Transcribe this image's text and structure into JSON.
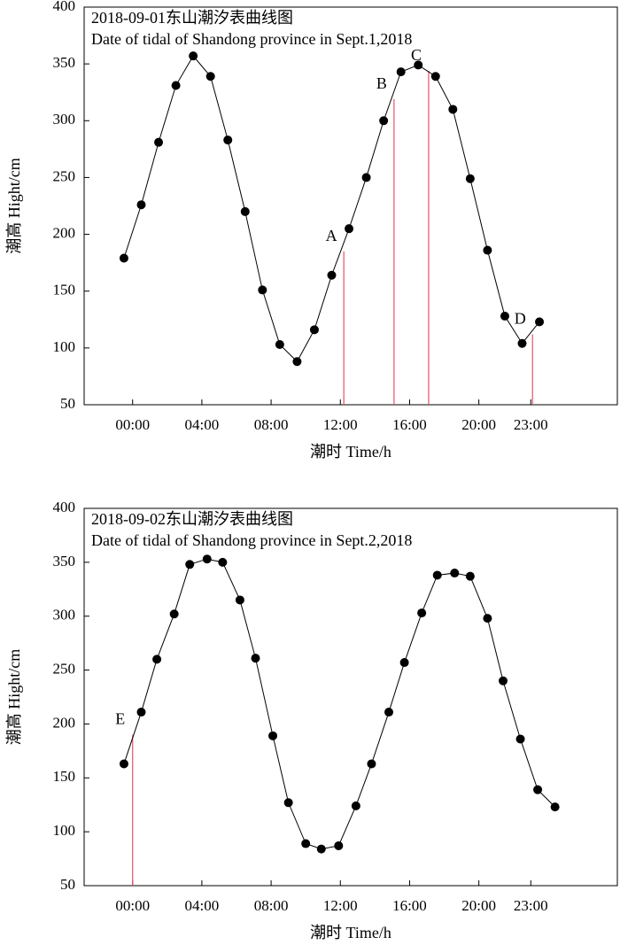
{
  "chart_data": [
    {
      "type": "line",
      "title": "2018-09-01东山潮汐表曲线图",
      "subtitle": "Date of tidal of Shandong province in Sept.1,2018",
      "x_label": "潮时 Time/h",
      "y_label": "潮高 Hight/cm",
      "color": "#000000",
      "annotation_color": "#e8506a",
      "x": [
        -0.5,
        0.5,
        1.5,
        2.5,
        3.5,
        4.5,
        5.5,
        6.5,
        7.5,
        8.5,
        9.5,
        10.5,
        11.5,
        12.5,
        13.5,
        14.5,
        15.5,
        16.5,
        17.5,
        18.5,
        19.5,
        20.5,
        21.5,
        22.5,
        23.5
      ],
      "values": [
        179,
        226,
        281,
        331,
        357,
        339,
        283,
        220,
        151,
        103,
        88,
        116,
        164,
        205,
        250,
        300,
        343,
        349,
        339,
        310,
        249,
        186,
        128,
        104,
        123
      ],
      "xlim": [
        -2.8,
        28
      ],
      "ylim": [
        50,
        400
      ],
      "xticks": [
        {
          "value": 0,
          "label": "00:00"
        },
        {
          "value": 4,
          "label": "04:00"
        },
        {
          "value": 8,
          "label": "08:00"
        },
        {
          "value": 12,
          "label": "12:00"
        },
        {
          "value": 16,
          "label": "16:00"
        },
        {
          "value": 20,
          "label": "20:00"
        },
        {
          "value": 23,
          "label": "23:00"
        }
      ],
      "yticks": [
        50,
        100,
        150,
        200,
        250,
        300,
        350,
        400
      ],
      "annotations": [
        {
          "text": "A",
          "x": 12.2,
          "y": 185
        },
        {
          "text": "B",
          "x": 15.1,
          "y": 319
        },
        {
          "text": "C",
          "x": 17.1,
          "y": 344
        },
        {
          "text": "D",
          "x": 23.1,
          "y": 112
        }
      ]
    },
    {
      "type": "line",
      "title": "2018-09-02东山潮汐表曲线图",
      "subtitle": "Date of tidal of Shandong province in Sept.2,2018",
      "x_label": "潮时 Time/h",
      "y_label": "潮高 Hight/cm",
      "color": "#000000",
      "annotation_color": "#e8506a",
      "x": [
        -0.5,
        0.5,
        1.4,
        2.4,
        3.3,
        4.3,
        5.2,
        6.2,
        7.1,
        8.1,
        9.0,
        10.0,
        10.9,
        11.9,
        12.9,
        13.8,
        14.8,
        15.7,
        16.7,
        17.6,
        18.6,
        19.5,
        20.5,
        21.4,
        22.4,
        23.4,
        24.4
      ],
      "values": [
        163,
        211,
        260,
        302,
        348,
        353,
        350,
        315,
        261,
        189,
        127,
        89,
        84,
        87,
        124,
        163,
        211,
        257,
        303,
        338,
        340,
        337,
        298,
        240,
        186,
        139,
        123
      ],
      "xlim": [
        -2.8,
        28
      ],
      "ylim": [
        50,
        400
      ],
      "xticks": [
        {
          "value": 0,
          "label": "00:00"
        },
        {
          "value": 4,
          "label": "04:00"
        },
        {
          "value": 8,
          "label": "08:00"
        },
        {
          "value": 12,
          "label": "12:00"
        },
        {
          "value": 16,
          "label": "16:00"
        },
        {
          "value": 20,
          "label": "20:00"
        },
        {
          "value": 23,
          "label": "23:00"
        }
      ],
      "yticks": [
        50,
        100,
        150,
        200,
        250,
        300,
        350,
        400
      ],
      "annotations": [
        {
          "text": "E",
          "x": 0,
          "y": 190
        }
      ]
    }
  ]
}
